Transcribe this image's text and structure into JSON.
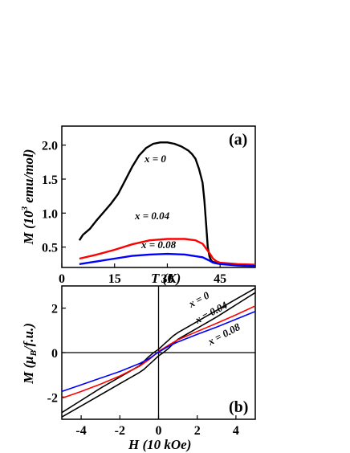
{
  "chart_data": [
    {
      "type": "line",
      "panel_label": "(a)",
      "xlabel": {
        "symbol": "T",
        "unit": " (K)"
      },
      "ylabel": {
        "prefix": "M (10",
        "exp": "3",
        "suffix": " emu/mol)"
      },
      "xlim": [
        0,
        55
      ],
      "ylim": [
        0.2,
        2.28
      ],
      "xticks": [
        0,
        15,
        30,
        45
      ],
      "yticks": [
        0.5,
        1.0,
        1.5,
        2.0
      ],
      "ytick_labels": [
        "0.5",
        "1.0",
        "1.5",
        "2.0"
      ],
      "grid": false,
      "series": [
        {
          "name": "x = 0",
          "color": "#000000",
          "x": [
            5,
            6,
            8,
            10,
            12,
            14,
            16,
            18,
            20,
            22,
            24,
            26,
            28,
            30,
            32,
            34,
            36,
            37,
            38,
            39,
            40,
            40.5,
            41,
            41.5,
            42,
            42.5,
            43,
            44,
            45,
            47,
            50,
            55
          ],
          "y": [
            0.6,
            0.68,
            0.77,
            0.9,
            1.02,
            1.14,
            1.28,
            1.48,
            1.68,
            1.85,
            1.96,
            2.02,
            2.04,
            2.04,
            2.02,
            1.98,
            1.92,
            1.87,
            1.8,
            1.65,
            1.45,
            1.2,
            0.85,
            0.5,
            0.36,
            0.3,
            0.28,
            0.27,
            0.26,
            0.25,
            0.24,
            0.23
          ]
        },
        {
          "name": "x = 0.04",
          "color": "#ff0000",
          "x": [
            5,
            10,
            15,
            20,
            25,
            30,
            35,
            38,
            40,
            42,
            43,
            44,
            45,
            50,
            55
          ],
          "y": [
            0.33,
            0.39,
            0.46,
            0.54,
            0.6,
            0.62,
            0.62,
            0.6,
            0.55,
            0.41,
            0.33,
            0.29,
            0.27,
            0.25,
            0.24
          ]
        },
        {
          "name": "x = 0.08",
          "color": "#0000ff",
          "x": [
            5,
            10,
            15,
            20,
            25,
            30,
            35,
            40,
            42,
            43,
            45,
            50,
            55
          ],
          "y": [
            0.25,
            0.29,
            0.33,
            0.37,
            0.39,
            0.4,
            0.39,
            0.35,
            0.3,
            0.27,
            0.25,
            0.23,
            0.22
          ]
        }
      ]
    },
    {
      "type": "line",
      "panel_label": "(b)",
      "xlabel": {
        "symbol": "H",
        "unit": " (10 kOe)"
      },
      "ylabel": {
        "prefix": "M (",
        "greek": "μ",
        "sub": "B",
        "suffix": "/f.u.)"
      },
      "xlim": [
        -5,
        5
      ],
      "ylim": [
        -3,
        3
      ],
      "xticks": [
        -4,
        -2,
        0,
        2,
        4
      ],
      "yticks": [
        -2,
        0,
        2
      ],
      "grid": false,
      "zero_lines": true,
      "series": [
        {
          "name": "x = 0",
          "color": "#000000",
          "branches": [
            {
              "x": [
                5,
                4,
                3,
                2,
                1.5,
                1,
                0.75,
                0.5,
                0.25,
                0,
                -0.25,
                -0.5,
                -1,
                -1.5,
                -2,
                -3,
                -4,
                -5
              ],
              "y": [
                2.9,
                2.4,
                1.9,
                1.4,
                1.15,
                0.9,
                0.75,
                0.55,
                0.35,
                0.15,
                0,
                -0.18,
                -0.6,
                -0.85,
                -1.1,
                -1.6,
                -2.15,
                -2.7
              ]
            },
            {
              "x": [
                -5,
                -4,
                -3,
                -2,
                -1.5,
                -1,
                -0.75,
                -0.5,
                -0.25,
                0,
                0.25,
                0.5,
                1,
                1.5,
                2,
                3,
                4,
                5
              ],
              "y": [
                -2.9,
                -2.4,
                -1.9,
                -1.4,
                -1.15,
                -0.9,
                -0.75,
                -0.55,
                -0.35,
                -0.15,
                0,
                0.18,
                0.6,
                0.85,
                1.1,
                1.6,
                2.15,
                2.7
              ]
            }
          ]
        },
        {
          "name": "x = 0.04",
          "color": "#ff0000",
          "branches": [
            {
              "x": [
                -5,
                -4,
                -3,
                -2,
                -1,
                -0.5,
                0,
                0.5,
                1,
                2,
                3,
                4,
                5
              ],
              "y": [
                -2.05,
                -1.75,
                -1.42,
                -1.05,
                -0.62,
                -0.32,
                0.05,
                0.32,
                0.58,
                0.95,
                1.32,
                1.7,
                2.1
              ]
            }
          ]
        },
        {
          "name": "x = 0.08",
          "color": "#0000ff",
          "branches": [
            {
              "x": [
                -5,
                -4,
                -3,
                -2,
                -1,
                -0.5,
                0,
                0.5,
                1,
                2,
                3,
                4,
                5
              ],
              "y": [
                -1.75,
                -1.45,
                -1.15,
                -0.85,
                -0.5,
                -0.28,
                0.02,
                0.28,
                0.48,
                0.82,
                1.15,
                1.5,
                1.85
              ]
            }
          ]
        }
      ]
    }
  ]
}
